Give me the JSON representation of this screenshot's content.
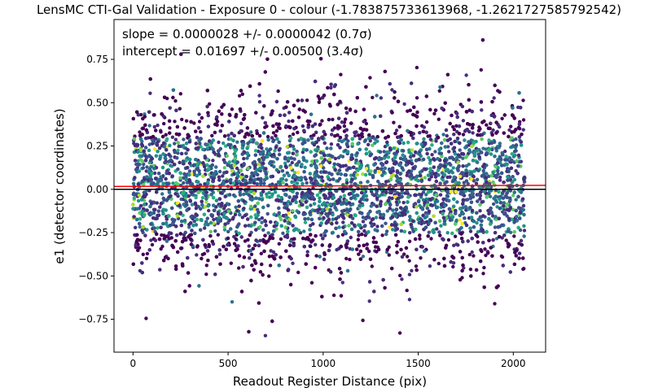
{
  "chart_data": {
    "type": "scatter",
    "title": "LensMC CTI-Gal Validation - Exposure 0 - colour (-1.783875733613968, -1.2621727585792542)",
    "xlabel": "Readout Register Distance (pix)",
    "ylabel": "e1 (detector coordinates)",
    "xlim": [
      -100,
      2170
    ],
    "ylim": [
      -0.94,
      0.98
    ],
    "xticks": [
      0,
      500,
      1000,
      1500,
      2000
    ],
    "xtick_labels": [
      "0",
      "500",
      "1000",
      "1500",
      "2000"
    ],
    "yticks": [
      -0.75,
      -0.5,
      -0.25,
      0.0,
      0.25,
      0.5,
      0.75
    ],
    "ytick_labels": [
      "−0.75",
      "−0.50",
      "−0.25",
      "0.00",
      "0.25",
      "0.50",
      "0.75"
    ],
    "grid": false,
    "annotations": [
      "slope = 0.0000028 +/- 0.0000042 (0.7σ)",
      "intercept = 0.01697 +/- 0.00500 (3.4σ)"
    ],
    "fit_line": {
      "slope": 2.8e-06,
      "intercept": 0.01697,
      "color": "#ff0000"
    },
    "zero_line": {
      "y": 0.0,
      "color": "#000000"
    },
    "scatter": {
      "x_range": [
        0,
        2060
      ],
      "y_center": 0.02,
      "y_spread": 0.23,
      "y_extremes": [
        -0.85,
        0.89
      ],
      "approx_count": 6500,
      "colormap": "viridis",
      "colors": [
        "#440154",
        "#472d7b",
        "#3b528b",
        "#2c728e",
        "#21918c",
        "#28ae80",
        "#5ec962",
        "#addc30",
        "#fde725"
      ]
    }
  }
}
